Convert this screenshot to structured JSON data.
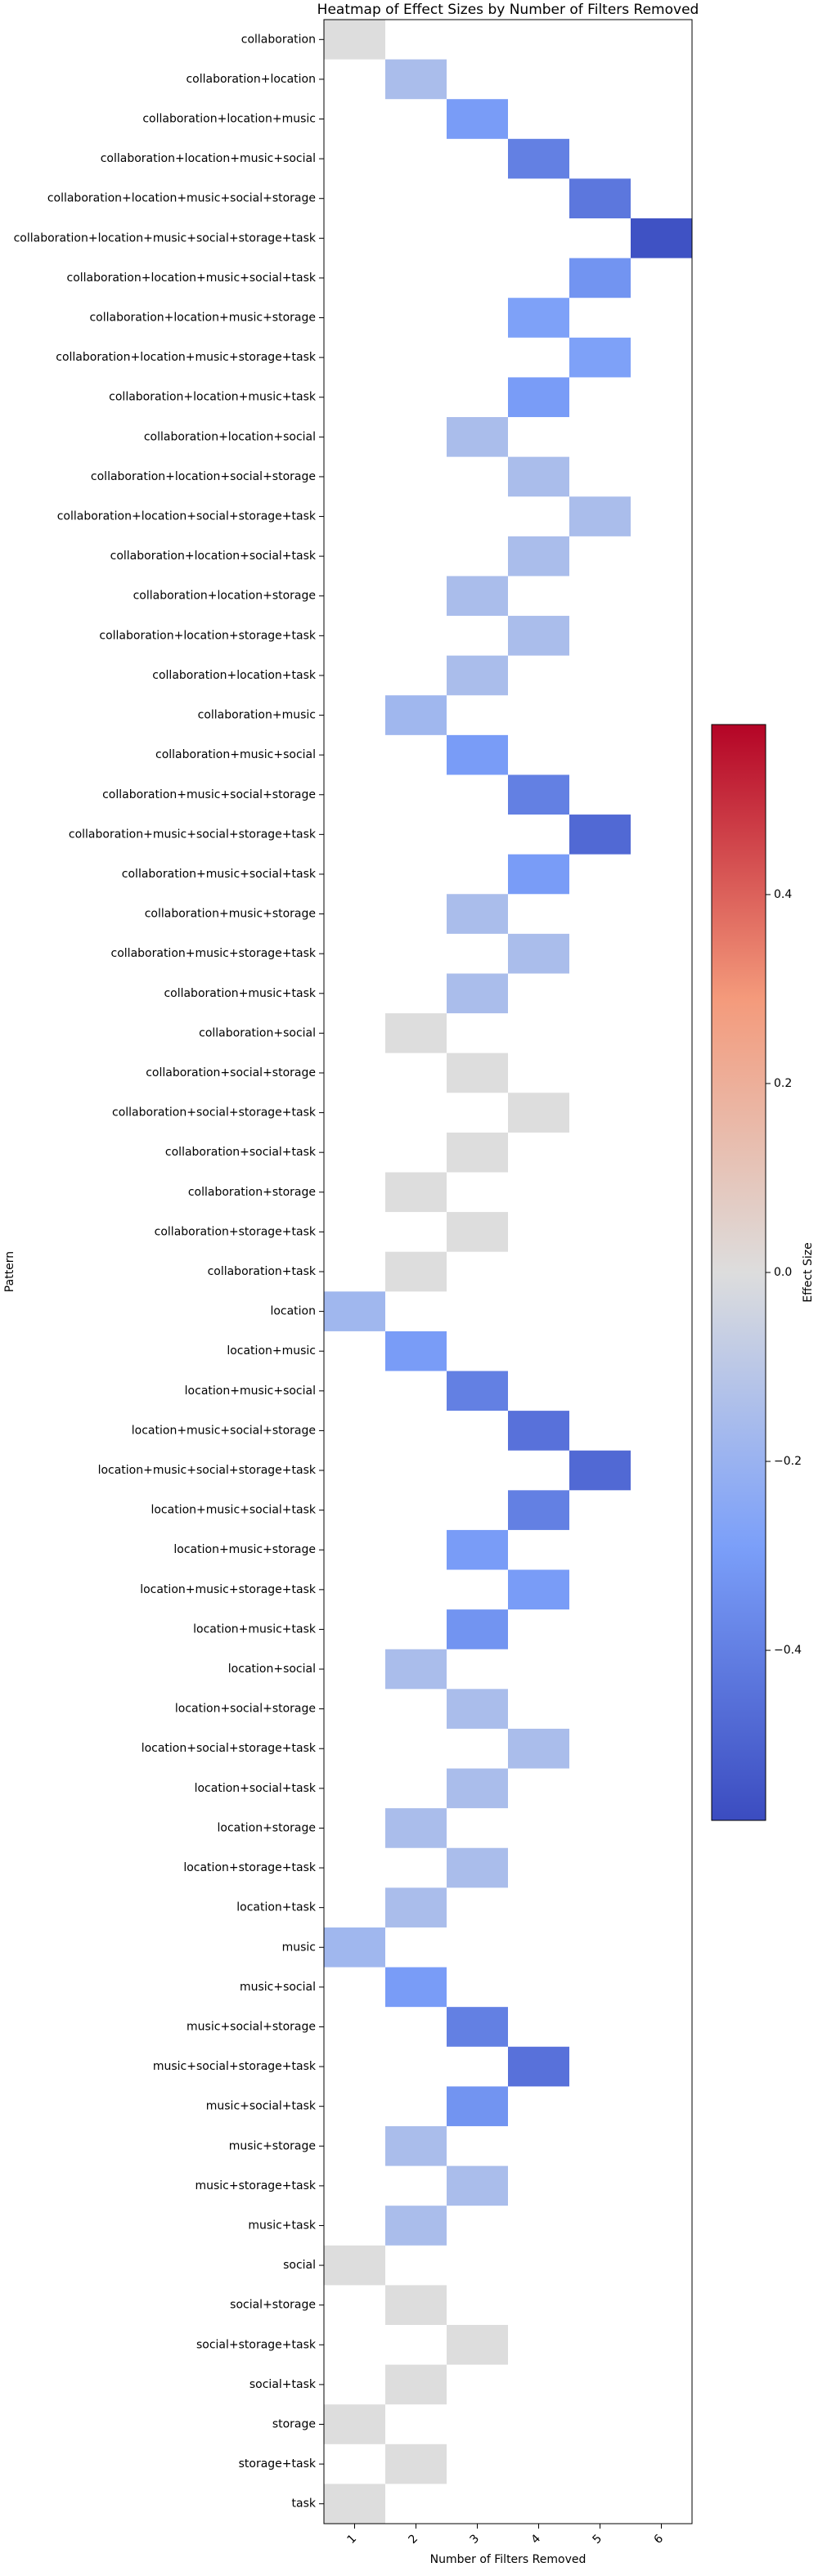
{
  "chart_data": {
    "type": "heatmap",
    "title": "Heatmap of Effect Sizes by Number of Filters Removed",
    "x_label": "Number of Filters Removed",
    "y_label": "Pattern",
    "colorbar_label": "Effect Size",
    "colormap": "coolwarm",
    "clim": [
      -0.58,
      0.58
    ],
    "cticks": [
      {
        "value": -0.4,
        "label": "−0.4"
      },
      {
        "value": -0.2,
        "label": "−0.2"
      },
      {
        "value": 0,
        "label": "0.0"
      },
      {
        "value": 0.2,
        "label": "0.2"
      },
      {
        "value": 0.4,
        "label": "0.4"
      }
    ],
    "columns": [
      1,
      2,
      3,
      4,
      5,
      6
    ],
    "rows": [
      "collaboration",
      "collaboration+location",
      "collaboration+location+music",
      "collaboration+location+music+social",
      "collaboration+location+music+social+storage",
      "collaboration+location+music+social+storage+task",
      "collaboration+location+music+social+task",
      "collaboration+location+music+storage",
      "collaboration+location+music+storage+task",
      "collaboration+location+music+task",
      "collaboration+location+social",
      "collaboration+location+social+storage",
      "collaboration+location+social+storage+task",
      "collaboration+location+social+task",
      "collaboration+location+storage",
      "collaboration+location+storage+task",
      "collaboration+location+task",
      "collaboration+music",
      "collaboration+music+social",
      "collaboration+music+social+storage",
      "collaboration+music+social+storage+task",
      "collaboration+music+social+task",
      "collaboration+music+storage",
      "collaboration+music+storage+task",
      "collaboration+music+task",
      "collaboration+social",
      "collaboration+social+storage",
      "collaboration+social+storage+task",
      "collaboration+social+task",
      "collaboration+storage",
      "collaboration+storage+task",
      "collaboration+task",
      "location",
      "location+music",
      "location+music+social",
      "location+music+social+storage",
      "location+music+social+storage+task",
      "location+music+social+task",
      "location+music+storage",
      "location+music+storage+task",
      "location+music+task",
      "location+social",
      "location+social+storage",
      "location+social+storage+task",
      "location+social+task",
      "location+storage",
      "location+storage+task",
      "location+task",
      "music",
      "music+social",
      "music+social+storage",
      "music+social+storage+task",
      "music+social+task",
      "music+storage",
      "music+storage+task",
      "music+task",
      "social",
      "social+storage",
      "social+storage+task",
      "social+task",
      "storage",
      "storage+task",
      "task"
    ],
    "z": [
      [
        0,
        null,
        null,
        null,
        null,
        null
      ],
      [
        null,
        -0.15,
        null,
        null,
        null,
        null
      ],
      [
        null,
        null,
        -0.3,
        null,
        null,
        null
      ],
      [
        null,
        null,
        null,
        -0.4,
        null,
        null
      ],
      [
        null,
        null,
        null,
        null,
        -0.43,
        null
      ],
      [
        null,
        null,
        null,
        null,
        null,
        -0.56
      ],
      [
        null,
        null,
        null,
        null,
        -0.33,
        null
      ],
      [
        null,
        null,
        null,
        -0.28,
        null,
        null
      ],
      [
        null,
        null,
        null,
        null,
        -0.28,
        null
      ],
      [
        null,
        null,
        null,
        -0.3,
        null,
        null
      ],
      [
        null,
        null,
        -0.15,
        null,
        null,
        null
      ],
      [
        null,
        null,
        null,
        -0.15,
        null,
        null
      ],
      [
        null,
        null,
        null,
        null,
        -0.15,
        null
      ],
      [
        null,
        null,
        null,
        -0.15,
        null,
        null
      ],
      [
        null,
        null,
        -0.15,
        null,
        null,
        null
      ],
      [
        null,
        null,
        null,
        -0.15,
        null,
        null
      ],
      [
        null,
        null,
        -0.15,
        null,
        null,
        null
      ],
      [
        null,
        -0.18,
        null,
        null,
        null,
        null
      ],
      [
        null,
        null,
        -0.3,
        null,
        null,
        null
      ],
      [
        null,
        null,
        null,
        -0.4,
        null,
        null
      ],
      [
        null,
        null,
        null,
        null,
        -0.48,
        null
      ],
      [
        null,
        null,
        null,
        -0.3,
        null,
        null
      ],
      [
        null,
        null,
        -0.15,
        null,
        null,
        null
      ],
      [
        null,
        null,
        null,
        -0.15,
        null,
        null
      ],
      [
        null,
        null,
        -0.15,
        null,
        null,
        null
      ],
      [
        null,
        0,
        null,
        null,
        null,
        null
      ],
      [
        null,
        null,
        0,
        null,
        null,
        null
      ],
      [
        null,
        null,
        null,
        0,
        null,
        null
      ],
      [
        null,
        null,
        0,
        null,
        null,
        null
      ],
      [
        null,
        0,
        null,
        null,
        null,
        null
      ],
      [
        null,
        null,
        0,
        null,
        null,
        null
      ],
      [
        null,
        0,
        null,
        null,
        null,
        null
      ],
      [
        -0.18,
        null,
        null,
        null,
        null,
        null
      ],
      [
        null,
        -0.3,
        null,
        null,
        null,
        null
      ],
      [
        null,
        null,
        -0.4,
        null,
        null,
        null
      ],
      [
        null,
        null,
        null,
        -0.45,
        null,
        null
      ],
      [
        null,
        null,
        null,
        null,
        -0.48,
        null
      ],
      [
        null,
        null,
        null,
        -0.4,
        null,
        null
      ],
      [
        null,
        null,
        -0.3,
        null,
        null,
        null
      ],
      [
        null,
        null,
        null,
        -0.3,
        null,
        null
      ],
      [
        null,
        null,
        -0.33,
        null,
        null,
        null
      ],
      [
        null,
        -0.15,
        null,
        null,
        null,
        null
      ],
      [
        null,
        null,
        -0.15,
        null,
        null,
        null
      ],
      [
        null,
        null,
        null,
        -0.15,
        null,
        null
      ],
      [
        null,
        null,
        -0.15,
        null,
        null,
        null
      ],
      [
        null,
        -0.15,
        null,
        null,
        null,
        null
      ],
      [
        null,
        null,
        -0.15,
        null,
        null,
        null
      ],
      [
        null,
        -0.15,
        null,
        null,
        null,
        null
      ],
      [
        -0.18,
        null,
        null,
        null,
        null,
        null
      ],
      [
        null,
        -0.3,
        null,
        null,
        null,
        null
      ],
      [
        null,
        null,
        -0.4,
        null,
        null,
        null
      ],
      [
        null,
        null,
        null,
        -0.45,
        null,
        null
      ],
      [
        null,
        null,
        -0.33,
        null,
        null,
        null
      ],
      [
        null,
        -0.15,
        null,
        null,
        null,
        null
      ],
      [
        null,
        null,
        -0.15,
        null,
        null,
        null
      ],
      [
        null,
        -0.15,
        null,
        null,
        null,
        null
      ],
      [
        0,
        null,
        null,
        null,
        null,
        null
      ],
      [
        null,
        0,
        null,
        null,
        null,
        null
      ],
      [
        null,
        null,
        0,
        null,
        null,
        null
      ],
      [
        null,
        0,
        null,
        null,
        null,
        null
      ],
      [
        0,
        null,
        null,
        null,
        null,
        null
      ],
      [
        null,
        0,
        null,
        null,
        null,
        null
      ],
      [
        0,
        null,
        null,
        null,
        null,
        null
      ]
    ]
  }
}
